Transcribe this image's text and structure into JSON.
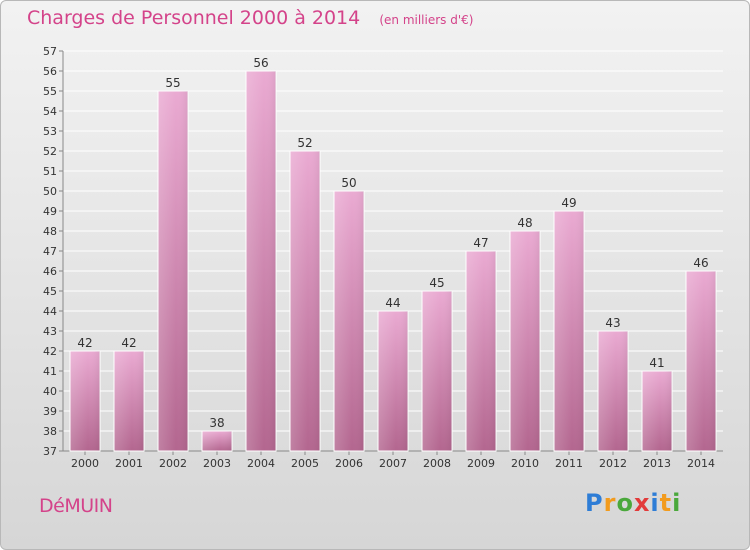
{
  "header": {
    "title": "Charges de Personnel 2000 à 2014",
    "subtitle": "(en milliers d'€)"
  },
  "footer": {
    "commune": "DéMUIN",
    "brand": "Proxiti",
    "brand_letters": [
      {
        "ch": "P",
        "color": "#2e7dd6"
      },
      {
        "ch": "r",
        "color": "#f29b1d"
      },
      {
        "ch": "o",
        "color": "#4aa83b"
      },
      {
        "ch": "x",
        "color": "#e23a3a"
      },
      {
        "ch": "i",
        "color": "#2e7dd6"
      },
      {
        "ch": "t",
        "color": "#f29b1d"
      },
      {
        "ch": "i",
        "color": "#4aa83b"
      }
    ]
  },
  "colors": {
    "accent": "#d4438a",
    "bar_light": "#e8a8d0",
    "bar_dark": "#b0648f",
    "axis": "#888888"
  },
  "chart_data": {
    "type": "bar",
    "categories": [
      "2000",
      "2001",
      "2002",
      "2003",
      "2004",
      "2005",
      "2006",
      "2007",
      "2008",
      "2009",
      "2010",
      "2011",
      "2012",
      "2013",
      "2014"
    ],
    "values": [
      42,
      42,
      55,
      38,
      56,
      52,
      50,
      44,
      45,
      47,
      48,
      49,
      43,
      41,
      46
    ],
    "title": "Charges de Personnel 2000 à 2014",
    "subtitle": "(en milliers d'€)",
    "xlabel": "",
    "ylabel": "",
    "ylim": [
      37,
      57
    ],
    "yticks": [
      37,
      38,
      39,
      40,
      41,
      42,
      43,
      44,
      45,
      46,
      47,
      48,
      49,
      50,
      51,
      52,
      53,
      54,
      55,
      56,
      57
    ],
    "grid": true,
    "data_labels": true,
    "legend": "none"
  }
}
